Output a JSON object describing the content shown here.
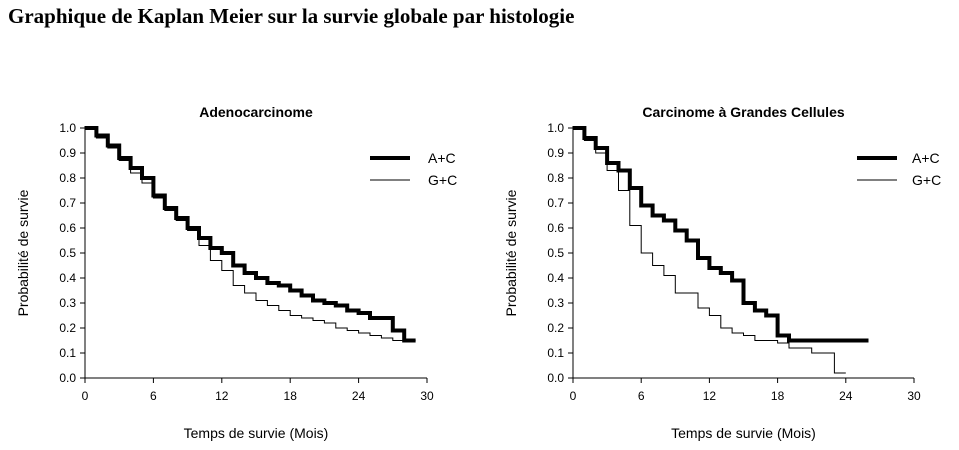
{
  "page": {
    "title": "Graphique de Kaplan Meier sur la survie globale par histologie"
  },
  "colors": {
    "ink": "#000000",
    "background": "#ffffff"
  },
  "chart_data": [
    {
      "type": "line",
      "title": "Adenocarcinome",
      "xlabel": "Temps de survie (Mois)",
      "ylabel": "Probabilité de survie",
      "xlim": [
        0,
        30
      ],
      "ylim": [
        0,
        1
      ],
      "x_ticks": [
        0,
        6,
        12,
        18,
        24,
        30
      ],
      "y_ticks": [
        0.0,
        0.1,
        0.2,
        0.3,
        0.4,
        0.5,
        0.6,
        0.7,
        0.8,
        0.9,
        1.0
      ],
      "grid": false,
      "legend_position": "top-right",
      "series": [
        {
          "name": "A+C",
          "line_style": "thick",
          "x": [
            0,
            1,
            2,
            3,
            4,
            5,
            6,
            7,
            8,
            9,
            10,
            11,
            12,
            13,
            14,
            15,
            16,
            17,
            18,
            19,
            20,
            21,
            22,
            23,
            24,
            25,
            26,
            27,
            28,
            29
          ],
          "y": [
            1.0,
            0.97,
            0.93,
            0.88,
            0.84,
            0.8,
            0.73,
            0.68,
            0.64,
            0.6,
            0.56,
            0.52,
            0.5,
            0.45,
            0.42,
            0.4,
            0.38,
            0.37,
            0.35,
            0.33,
            0.31,
            0.3,
            0.29,
            0.27,
            0.26,
            0.24,
            0.24,
            0.19,
            0.15,
            0.15
          ]
        },
        {
          "name": "G+C",
          "line_style": "thin",
          "x": [
            0,
            1,
            2,
            3,
            4,
            5,
            6,
            7,
            8,
            9,
            10,
            11,
            12,
            13,
            14,
            15,
            16,
            17,
            18,
            19,
            20,
            21,
            22,
            23,
            24,
            25,
            26,
            27,
            28,
            29
          ],
          "y": [
            1.0,
            0.96,
            0.92,
            0.87,
            0.82,
            0.78,
            0.72,
            0.67,
            0.63,
            0.59,
            0.53,
            0.47,
            0.43,
            0.37,
            0.34,
            0.31,
            0.29,
            0.27,
            0.25,
            0.24,
            0.23,
            0.22,
            0.2,
            0.19,
            0.18,
            0.17,
            0.16,
            0.15,
            0.15,
            0.15
          ]
        }
      ]
    },
    {
      "type": "line",
      "title": "Carcinome à Grandes Cellules",
      "xlabel": "Temps de survie (Mois)",
      "ylabel": "Probabilité de survie",
      "xlim": [
        0,
        30
      ],
      "ylim": [
        0,
        1
      ],
      "x_ticks": [
        0,
        6,
        12,
        18,
        24,
        30
      ],
      "y_ticks": [
        0.0,
        0.1,
        0.2,
        0.3,
        0.4,
        0.5,
        0.6,
        0.7,
        0.8,
        0.9,
        1.0
      ],
      "grid": false,
      "legend_position": "top-right",
      "series": [
        {
          "name": "A+C",
          "line_style": "thick",
          "x": [
            0,
            1,
            2,
            3,
            4,
            5,
            6,
            7,
            8,
            9,
            10,
            11,
            12,
            13,
            14,
            15,
            16,
            17,
            18,
            19,
            20,
            21,
            22,
            23,
            24,
            25,
            26
          ],
          "y": [
            1.0,
            0.96,
            0.92,
            0.86,
            0.83,
            0.76,
            0.69,
            0.65,
            0.63,
            0.59,
            0.55,
            0.48,
            0.44,
            0.42,
            0.39,
            0.3,
            0.27,
            0.25,
            0.17,
            0.15,
            0.15,
            0.15,
            0.15,
            0.15,
            0.15,
            0.15,
            0.15
          ]
        },
        {
          "name": "G+C",
          "line_style": "thin",
          "x": [
            0,
            1,
            2,
            3,
            4,
            5,
            6,
            7,
            8,
            9,
            10,
            11,
            12,
            13,
            14,
            15,
            16,
            17,
            18,
            19,
            20,
            21,
            22,
            23,
            24
          ],
          "y": [
            1.0,
            0.95,
            0.9,
            0.83,
            0.75,
            0.61,
            0.5,
            0.45,
            0.41,
            0.34,
            0.34,
            0.28,
            0.25,
            0.2,
            0.18,
            0.17,
            0.15,
            0.15,
            0.14,
            0.12,
            0.12,
            0.1,
            0.1,
            0.02,
            0.02
          ]
        }
      ]
    }
  ]
}
